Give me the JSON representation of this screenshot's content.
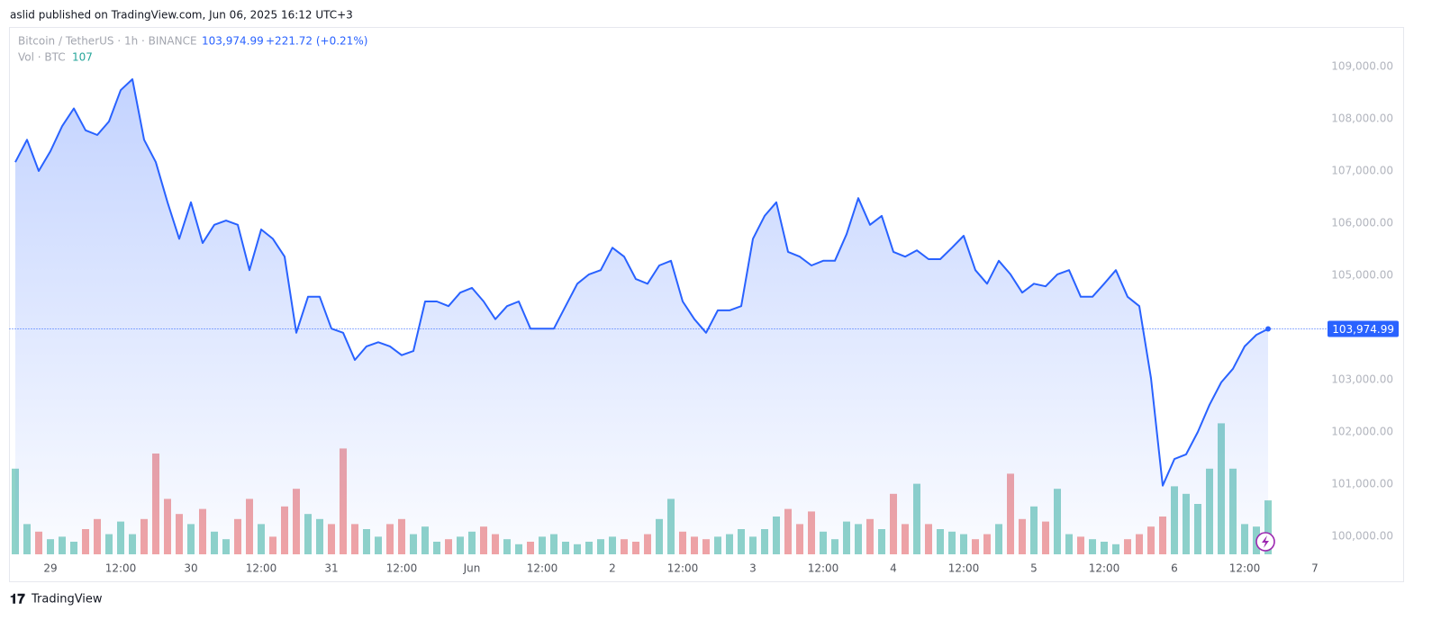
{
  "chart_data": {
    "type": "line",
    "published": "aslid published on TradingView.com, Jun 06, 2025 16:12 UTC+3",
    "symbol": "Bitcoin / TetherUS · 1h · BINANCE",
    "last_price": {
      "value": 103974.99,
      "label": "103,974.99"
    },
    "change": {
      "value": 221.72,
      "label": "+221.72 (+0.21%)"
    },
    "volume_label": "Vol · BTC",
    "brand": "TradingView",
    "xlim": [
      -0.5,
      111.5
    ],
    "xticks": [
      {
        "value": 3,
        "label": "29"
      },
      {
        "value": 9,
        "label": "12:00"
      },
      {
        "value": 15,
        "label": "30"
      },
      {
        "value": 21,
        "label": "12:00"
      },
      {
        "value": 27,
        "label": "31"
      },
      {
        "value": 33,
        "label": "12:00"
      },
      {
        "value": 39,
        "label": "Jun"
      },
      {
        "value": 45,
        "label": "12:00"
      },
      {
        "value": 51,
        "label": "2"
      },
      {
        "value": 57,
        "label": "12:00"
      },
      {
        "value": 63,
        "label": "3"
      },
      {
        "value": 69,
        "label": "12:00"
      },
      {
        "value": 75,
        "label": "4"
      },
      {
        "value": 81,
        "label": "12:00"
      },
      {
        "value": 87,
        "label": "5"
      },
      {
        "value": 93,
        "label": "12:00"
      },
      {
        "value": 99,
        "label": "6"
      },
      {
        "value": 105,
        "label": "12:00"
      },
      {
        "value": 111,
        "label": "7"
      }
    ],
    "ylim": [
      99120,
      109760
    ],
    "yticks": [
      {
        "value": 100000,
        "label": "100,000.00"
      },
      {
        "value": 101000,
        "label": "101,000.00"
      },
      {
        "value": 102000,
        "label": "102,000.00"
      },
      {
        "value": 103000,
        "label": "103,000.00"
      },
      {
        "value": 104000,
        "label": "104,000.00"
      },
      {
        "value": 105000,
        "label": "105,000.00"
      },
      {
        "value": 106000,
        "label": "106,000.00"
      },
      {
        "value": 107000,
        "label": "107,000.00"
      },
      {
        "value": 108000,
        "label": "108,000.00"
      },
      {
        "value": 109000,
        "label": "109,000.00"
      }
    ],
    "y2lim": [
      0,
      1000
    ],
    "up_color": "#8fd3c9",
    "down_color": "#f2a4a4",
    "series": [
      {
        "name": "Bitcoin / TetherUS",
        "color": "#2962ff",
        "values": [
          107170,
          107600,
          107000,
          107380,
          107860,
          108200,
          107780,
          107690,
          107950,
          108550,
          108760,
          107600,
          107170,
          106400,
          105700,
          106400,
          105620,
          105970,
          106050,
          105970,
          105100,
          105880,
          105700,
          105360,
          103900,
          104590,
          104590,
          103980,
          103900,
          103380,
          103640,
          103720,
          103640,
          103470,
          103550,
          104500,
          104500,
          104410,
          104670,
          104760,
          104500,
          104160,
          104410,
          104500,
          103980,
          103980,
          103980,
          104410,
          104840,
          105020,
          105100,
          105530,
          105360,
          104930,
          104840,
          105190,
          105280,
          104500,
          104160,
          103900,
          104330,
          104330,
          104410,
          105700,
          106140,
          106400,
          105450,
          105360,
          105190,
          105280,
          105280,
          105790,
          106480,
          105970,
          106140,
          105450,
          105360,
          105480,
          105310,
          105310,
          105530,
          105760,
          105100,
          104840,
          105280,
          105020,
          104670,
          104840,
          104790,
          105020,
          105100,
          104590,
          104590,
          104840,
          105100,
          104590,
          104410,
          103030,
          100970,
          101480,
          101570,
          102000,
          102520,
          102950,
          103210,
          103640,
          103860,
          103974.99
        ]
      },
      {
        "name": "Vol · BTC",
        "axis": "y2",
        "values": [
          170,
          60,
          45,
          30,
          35,
          25,
          50,
          70,
          40,
          65,
          40,
          70,
          200,
          110,
          80,
          60,
          90,
          45,
          30,
          70,
          110,
          60,
          35,
          95,
          130,
          80,
          70,
          60,
          210,
          60,
          50,
          35,
          60,
          70,
          40,
          55,
          25,
          30,
          35,
          45,
          55,
          40,
          30,
          20,
          25,
          35,
          40,
          25,
          20,
          25,
          30,
          35,
          30,
          25,
          40,
          70,
          110,
          45,
          35,
          30,
          35,
          40,
          50,
          35,
          50,
          75,
          90,
          60,
          85,
          45,
          30,
          65,
          60,
          70,
          50,
          120,
          60,
          140,
          60,
          50,
          45,
          40,
          30,
          40,
          60,
          160,
          70,
          95,
          65,
          130,
          40,
          35,
          30,
          25,
          20,
          30,
          40,
          55,
          75,
          135,
          120,
          100,
          170,
          260,
          170,
          60,
          55,
          107
        ]
      }
    ]
  }
}
